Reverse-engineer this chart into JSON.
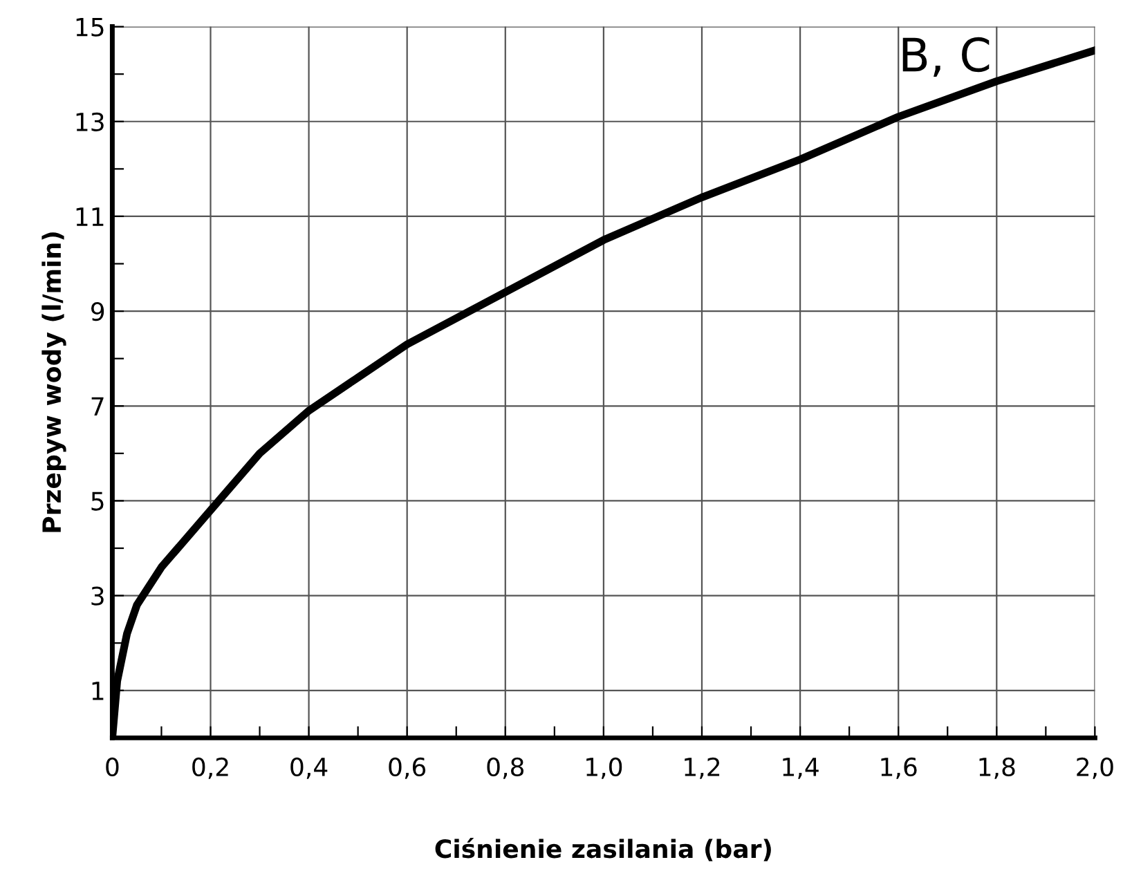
{
  "chart_data": {
    "type": "line",
    "xlabel": "Ciśnienie zasilania (bar)",
    "ylabel": "Przepyw wody (l/min)",
    "x": [
      0,
      0.01,
      0.03,
      0.05,
      0.1,
      0.2,
      0.3,
      0.4,
      0.5,
      0.6,
      0.8,
      1.0,
      1.2,
      1.4,
      1.6,
      1.8,
      2.0
    ],
    "series": [
      {
        "color": "#000000",
        "values": [
          0,
          1.2,
          2.2,
          2.8,
          3.6,
          4.8,
          6.0,
          6.9,
          7.6,
          8.3,
          9.4,
          10.5,
          11.4,
          12.2,
          13.1,
          13.85,
          14.5
        ]
      }
    ],
    "annotations": [
      "B, C"
    ],
    "xlim": [
      0,
      2.0
    ],
    "ylim": [
      0,
      15
    ],
    "xticks": [
      0,
      {
        "value": 0.1,
        "label": null
      },
      {
        "value": 0.2,
        "label": "0,2"
      },
      {
        "value": 0.3,
        "label": null
      },
      {
        "value": 0.4,
        "label": "0,4"
      },
      {
        "value": 0.5,
        "label": null
      },
      {
        "value": 0.6,
        "label": "0,6"
      },
      {
        "value": 0.7,
        "label": null
      },
      {
        "value": 0.8,
        "label": "0,8"
      },
      {
        "value": 0.9,
        "label": null
      },
      {
        "value": 1.0,
        "label": "1,0"
      },
      {
        "value": 1.1,
        "label": null
      },
      {
        "value": 1.2,
        "label": "1,2"
      },
      {
        "value": 1.3,
        "label": null
      },
      {
        "value": 1.4,
        "label": "1,4"
      },
      {
        "value": 1.5,
        "label": null
      },
      {
        "value": 1.6,
        "label": "1,6"
      },
      {
        "value": 1.7,
        "label": null
      },
      {
        "value": 1.8,
        "label": "1,8"
      },
      {
        "value": 1.9,
        "label": null
      },
      {
        "value": 2.0,
        "label": "2,0"
      }
    ],
    "yticks": [
      1,
      {
        "value": 2,
        "label": null
      },
      3,
      {
        "value": 4,
        "label": null
      },
      5,
      {
        "value": 6,
        "label": null
      },
      7,
      {
        "value": 8,
        "label": null
      },
      9,
      {
        "value": 10,
        "label": null
      },
      11,
      {
        "value": 12,
        "label": null
      },
      13,
      {
        "value": 14,
        "label": null
      },
      15
    ],
    "grid": true,
    "marker": "none",
    "line_style": "solid",
    "legend": false
  }
}
